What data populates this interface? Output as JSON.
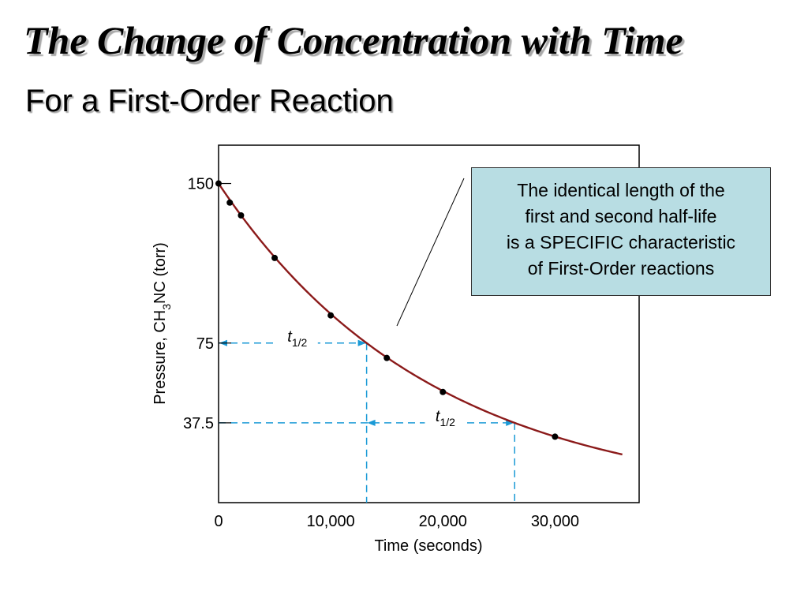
{
  "title": "The Change of Concentration with Time",
  "subtitle": "For a First-Order Reaction",
  "callout": {
    "lines": [
      "The identical length of the",
      "first and second half-life",
      "is a SPECIFIC characteristic",
      "of First-Order reactions"
    ]
  },
  "colors": {
    "curve": "#8b1a1a",
    "guide": "#1a9ad6",
    "callout_bg": "#b8dde3",
    "point": "#000000"
  },
  "chart_data": {
    "type": "line",
    "title": "",
    "xlabel": "Time (seconds)",
    "ylabel_parts": [
      "Pressure, CH",
      "3",
      "NC (torr)"
    ],
    "xlim": [
      0,
      37500
    ],
    "ylim": [
      0,
      168
    ],
    "xticks": [
      {
        "value": 0,
        "label": "0"
      },
      {
        "value": 10000,
        "label": "10,000"
      },
      {
        "value": 20000,
        "label": "20,000"
      },
      {
        "value": 30000,
        "label": "30,000"
      }
    ],
    "yticks": [
      {
        "value": 150,
        "label": "150"
      },
      {
        "value": 75,
        "label": "75"
      },
      {
        "value": 37.5,
        "label": "37.5"
      }
    ],
    "curve": {
      "initial_pressure": 150,
      "half_life": 13200,
      "x_range": [
        0,
        36000
      ]
    },
    "points": [
      {
        "x": 0,
        "y": 150
      },
      {
        "x": 1000,
        "y": 141
      },
      {
        "x": 2000,
        "y": 135
      },
      {
        "x": 5000,
        "y": 115
      },
      {
        "x": 10000,
        "y": 88
      },
      {
        "x": 15000,
        "y": 68
      },
      {
        "x": 20000,
        "y": 52
      },
      {
        "x": 30000,
        "y": 31
      }
    ],
    "half_life_markers": [
      {
        "label_main": "t",
        "label_sub": "1/2",
        "x_from": 0,
        "x_to": 13200,
        "y": 75
      },
      {
        "label_main": "t",
        "label_sub": "1/2",
        "x_from": 13200,
        "x_to": 26400,
        "y": 37.5
      }
    ]
  }
}
